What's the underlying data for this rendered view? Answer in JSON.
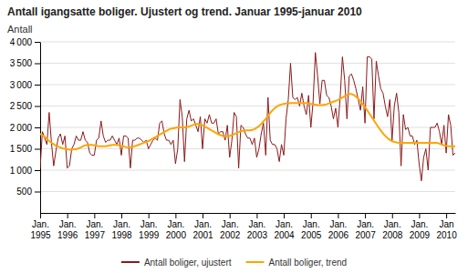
{
  "chart_data": {
    "type": "line",
    "title": "Antall igangsatte boliger. Ujustert og trend. Januar 1995-januar 2010",
    "y_label": "Antall",
    "categories": [
      "Jan.\n1995",
      null,
      null,
      null,
      null,
      null,
      null,
      null,
      null,
      null,
      null,
      null,
      "Jan.\n1996",
      null,
      null,
      null,
      null,
      null,
      null,
      null,
      null,
      null,
      null,
      null,
      "Jan.\n1997",
      null,
      null,
      null,
      null,
      null,
      null,
      null,
      null,
      null,
      null,
      null,
      "Jan.\n1998",
      null,
      null,
      null,
      null,
      null,
      null,
      null,
      null,
      null,
      null,
      null,
      "Jan.\n1999",
      null,
      null,
      null,
      null,
      null,
      null,
      null,
      null,
      null,
      null,
      null,
      "Jan.\n2000",
      null,
      null,
      null,
      null,
      null,
      null,
      null,
      null,
      null,
      null,
      null,
      "Jan.\n2001",
      null,
      null,
      null,
      null,
      null,
      null,
      null,
      null,
      null,
      null,
      null,
      "Jan.\n2002",
      null,
      null,
      null,
      null,
      null,
      null,
      null,
      null,
      null,
      null,
      null,
      "Jan.\n2003",
      null,
      null,
      null,
      null,
      null,
      null,
      null,
      null,
      null,
      null,
      null,
      "Jan.\n2004",
      null,
      null,
      null,
      null,
      null,
      null,
      null,
      null,
      null,
      null,
      null,
      "Jan.\n2005",
      null,
      null,
      null,
      null,
      null,
      null,
      null,
      null,
      null,
      null,
      null,
      "Jan.\n2006",
      null,
      null,
      null,
      null,
      null,
      null,
      null,
      null,
      null,
      null,
      null,
      "Jan.\n2007",
      null,
      null,
      null,
      null,
      null,
      null,
      null,
      null,
      null,
      null,
      null,
      "Jan.\n2008",
      null,
      null,
      null,
      null,
      null,
      null,
      null,
      null,
      null,
      null,
      null,
      "Jan.\n2009",
      null,
      null,
      null,
      null,
      null,
      null,
      null,
      null,
      null,
      null,
      null,
      "Jan\n2010",
      null,
      null,
      null,
      null
    ],
    "series": [
      {
        "name": "Antall boliger, ujustert",
        "color": "#8B1A1A",
        "values": [
          1050,
          1900,
          1750,
          1600,
          2350,
          1650,
          1100,
          1450,
          1750,
          1850,
          1600,
          1800,
          1050,
          1100,
          1500,
          1600,
          1800,
          1700,
          1700,
          1900,
          1700,
          1650,
          1400,
          1350,
          1350,
          1700,
          1750,
          2150,
          1800,
          1650,
          1700,
          1700,
          1800,
          1700,
          1600,
          1750,
          1350,
          1800,
          1800,
          1750,
          1050,
          1700,
          1700,
          1750,
          1750,
          1700,
          1650,
          1700,
          1500,
          1600,
          1700,
          1750,
          1700,
          2100,
          2150,
          1850,
          1700,
          1700,
          1600,
          1700,
          1150,
          1500,
          2650,
          2250,
          1200,
          2200,
          2400,
          2150,
          2200,
          2050,
          1900,
          2250,
          1500,
          2200,
          2100,
          2300,
          2100,
          2100,
          2200,
          1850,
          1900,
          1900,
          1700,
          2050,
          1300,
          1700,
          2350,
          2250,
          1050,
          2050,
          2000,
          1850,
          1750,
          1750,
          1600,
          1750,
          1300,
          1500,
          1850,
          2100,
          1350,
          2700,
          1700,
          1600,
          1600,
          1500,
          1200,
          1600,
          1350,
          2200,
          2650,
          3500,
          2700,
          2650,
          2700,
          2500,
          2800,
          2500,
          2300,
          2750,
          2000,
          2600,
          3750,
          3200,
          2550,
          3100,
          3100,
          2750,
          2700,
          2500,
          2200,
          2450,
          2000,
          2700,
          3650,
          3100,
          2200,
          3200,
          3250,
          3100,
          2900,
          2650,
          2400,
          2950,
          2100,
          3650,
          3650,
          3600,
          2200,
          3550,
          3200,
          2900,
          2800,
          2500,
          2250,
          2650,
          1700,
          2500,
          2800,
          2350,
          1100,
          2300,
          1950,
          2000,
          1800,
          1800,
          1600,
          1700,
          1150,
          750,
          1300,
          1500,
          1000,
          2000,
          2000,
          2000,
          2100,
          1900,
          1600,
          2050,
          1400,
          2300,
          2050,
          1350,
          1400
        ]
      },
      {
        "name": "Antall boliger, trend",
        "color": "#FFA500",
        "values": [
          1850,
          1820,
          1780,
          1730,
          1680,
          1640,
          1610,
          1570,
          1550,
          1530,
          1510,
          1500,
          1490,
          1480,
          1480,
          1490,
          1490,
          1510,
          1530,
          1560,
          1580,
          1590,
          1590,
          1590,
          1580,
          1570,
          1560,
          1560,
          1560,
          1560,
          1570,
          1580,
          1590,
          1590,
          1590,
          1580,
          1570,
          1560,
          1540,
          1530,
          1530,
          1540,
          1560,
          1580,
          1600,
          1620,
          1640,
          1660,
          1680,
          1710,
          1740,
          1770,
          1800,
          1830,
          1860,
          1890,
          1920,
          1950,
          1970,
          1980,
          1990,
          2000,
          2000,
          2000,
          2000,
          2010,
          2020,
          2040,
          2060,
          2080,
          2080,
          2070,
          2050,
          2020,
          1990,
          1960,
          1930,
          1900,
          1870,
          1840,
          1820,
          1800,
          1790,
          1790,
          1800,
          1820,
          1840,
          1870,
          1890,
          1910,
          1920,
          1930,
          1930,
          1930,
          1940,
          1960,
          1990,
          2030,
          2080,
          2140,
          2200,
          2270,
          2340,
          2400,
          2450,
          2490,
          2520,
          2540,
          2550,
          2560,
          2560,
          2570,
          2570,
          2570,
          2570,
          2570,
          2570,
          2570,
          2570,
          2560,
          2550,
          2540,
          2530,
          2520,
          2520,
          2520,
          2530,
          2540,
          2560,
          2580,
          2600,
          2620,
          2640,
          2670,
          2700,
          2730,
          2760,
          2780,
          2780,
          2760,
          2720,
          2670,
          2610,
          2540,
          2470,
          2400,
          2320,
          2240,
          2160,
          2080,
          2000,
          1930,
          1860,
          1800,
          1750,
          1710,
          1680,
          1660,
          1650,
          1640,
          1640,
          1640,
          1640,
          1640,
          1640,
          1640,
          1640,
          1640,
          1640,
          1640,
          1640,
          1640,
          1640,
          1640,
          1640,
          1640,
          1640,
          1620,
          1600,
          1580,
          1570,
          1560,
          1560,
          1560,
          1560
        ]
      }
    ],
    "ylim": [
      0,
      4000
    ],
    "yticks": [
      500,
      {
        "value": 1000,
        "label": "1 000"
      },
      {
        "value": 1500,
        "label": "1 500"
      },
      {
        "value": 2000,
        "label": "2 000"
      },
      {
        "value": 2500,
        "label": "2 500"
      },
      {
        "value": 3000,
        "label": "3 000"
      },
      {
        "value": 3500,
        "label": "3 500"
      },
      {
        "value": 4000,
        "label": "4 000"
      }
    ],
    "grid": true,
    "legend": "bottom"
  }
}
